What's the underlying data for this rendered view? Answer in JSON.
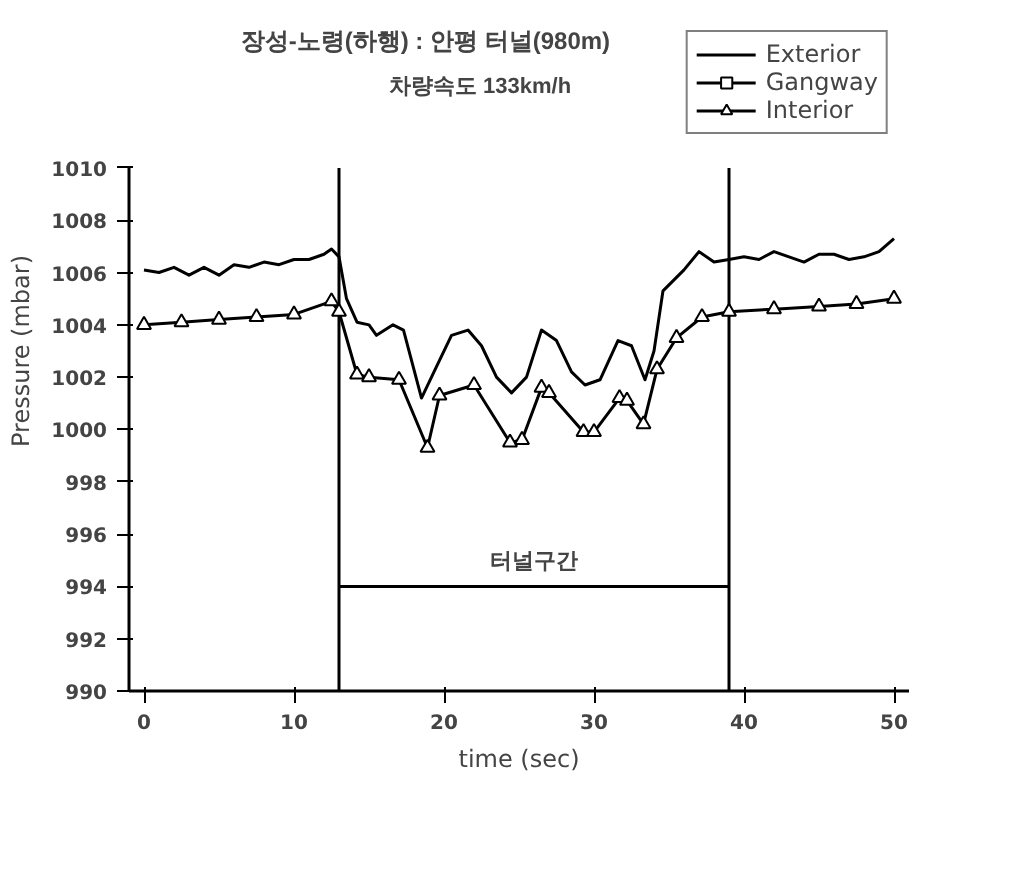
{
  "chart_data": {
    "type": "line",
    "title": "장성-노령(하행) : 안평 터널(980m)",
    "subtitle": "차량속도 133km/h",
    "xlabel": "time (sec)",
    "ylabel": "Pressure (mbar)",
    "xlim": [
      -1,
      51
    ],
    "xticks": [
      0,
      10,
      20,
      30,
      40,
      50
    ],
    "ylim": [
      990,
      1010
    ],
    "yticks": [
      990,
      992,
      994,
      996,
      998,
      1000,
      1002,
      1004,
      1006,
      1008,
      1010
    ],
    "legend": "top right",
    "grid": false,
    "series": [
      {
        "name": "Exterior",
        "color": "#000000",
        "marker": "none",
        "x": [
          0,
          1,
          2,
          3,
          4,
          5,
          6,
          7,
          8,
          9,
          10,
          11,
          12,
          12.5,
          13,
          13.5,
          14.2,
          15,
          15.5,
          16.6,
          17.3,
          18.5,
          19.5,
          20.5,
          21.6,
          22.5,
          23.5,
          24.5,
          25.5,
          26.5,
          27.5,
          28.5,
          29.4,
          30.4,
          31.6,
          32.5,
          33.4,
          34,
          34.6,
          35.3,
          36,
          37,
          38,
          39,
          40,
          41,
          42,
          43,
          44,
          45,
          46,
          47,
          48,
          49,
          50
        ],
        "values": [
          1006.1,
          1006,
          1006.2,
          1005.9,
          1006.2,
          1005.9,
          1006.3,
          1006.2,
          1006.4,
          1006.3,
          1006.5,
          1006.5,
          1006.7,
          1006.9,
          1006.6,
          1005,
          1004.1,
          1004,
          1003.6,
          1004,
          1003.8,
          1001.2,
          1002.4,
          1003.6,
          1003.8,
          1003.2,
          1002,
          1001.4,
          1002,
          1003.8,
          1003.4,
          1002.2,
          1001.7,
          1001.9,
          1003.4,
          1003.2,
          1001.9,
          1003,
          1005.3,
          1005.7,
          1006.1,
          1006.8,
          1006.4,
          1006.5,
          1006.6,
          1006.5,
          1006.8,
          1006.6,
          1006.4,
          1006.7,
          1006.7,
          1006.5,
          1006.6,
          1006.8,
          1007.3
        ]
      },
      {
        "name": "Gangway",
        "color": "#000000",
        "marker": "square"
      },
      {
        "name": "Interior",
        "color": "#000000",
        "marker": "triangle",
        "x": [
          0,
          2.5,
          5,
          7.5,
          10,
          12.5,
          13,
          14.2,
          15,
          17,
          18.9,
          19.7,
          22,
          24.4,
          25.2,
          26.5,
          27,
          29.3,
          30,
          31.7,
          32.2,
          33.3,
          34.2,
          35.5,
          37.2,
          39,
          42,
          45,
          47.5,
          50
        ],
        "values": [
          1004,
          1004.1,
          1004.2,
          1004.3,
          1004.4,
          1004.9,
          1004.5,
          1002.1,
          1002,
          1001.9,
          999.3,
          1001.3,
          1001.7,
          999.5,
          999.6,
          1001.6,
          1001.4,
          999.9,
          999.9,
          1001.2,
          1001.1,
          1000.2,
          1002.3,
          1003.5,
          1004.3,
          1004.5,
          1004.6,
          1004.7,
          1004.8,
          1005
        ]
      },
      {
        "color": "#000000",
        "marker": "none",
        "x": [
          13,
          39
        ],
        "values": [
          994,
          994
        ]
      }
    ],
    "ref_lines": [
      {
        "axis": "x",
        "value": 13,
        "color": "#000000"
      },
      {
        "axis": "x",
        "value": 39,
        "color": "#000000"
      }
    ],
    "annotations": [
      {
        "text": "터널구간",
        "x": 26,
        "y": 994
      }
    ]
  }
}
